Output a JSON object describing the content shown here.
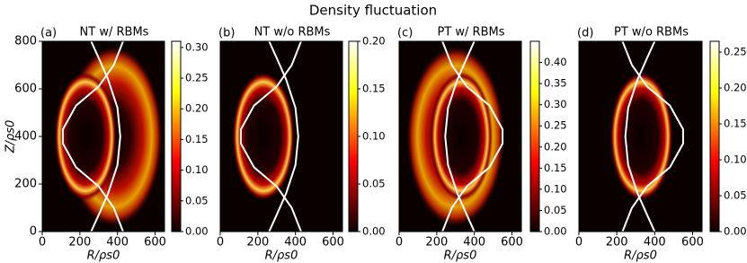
{
  "title": "Density fluctuation",
  "chart_data": [
    {
      "type": "heatmap",
      "panel_label": "(a)",
      "title": "NT w/ RBMs",
      "xlabel": "R/ρs0",
      "ylabel": "Z/ρs0",
      "colormap": "hot",
      "xlim": [
        0,
        650
      ],
      "ylim": [
        0,
        800
      ],
      "xticks": [
        0,
        200,
        400,
        600
      ],
      "yticks": [
        0,
        200,
        400,
        600,
        800
      ],
      "clim": [
        0,
        0.31
      ],
      "cticks": [
        {
          "value": 0,
          "label": "0.00"
        },
        {
          "value": 0.05,
          "label": "0.05"
        },
        {
          "value": 0.1,
          "label": "0.10"
        },
        {
          "value": 0.15,
          "label": "0.15"
        },
        {
          "value": 0.2,
          "label": "0.20"
        },
        {
          "value": 0.25,
          "label": "0.25"
        },
        {
          "value": 0.3,
          "label": "0.30"
        }
      ]
    },
    {
      "type": "heatmap",
      "panel_label": "(b)",
      "title": "NT w/o RBMs",
      "xlabel": "R/ρs0",
      "colormap": "hot",
      "xlim": [
        0,
        650
      ],
      "ylim": [
        0,
        800
      ],
      "xticks": [
        0,
        200,
        400,
        600
      ],
      "clim": [
        0,
        0.2
      ],
      "cticks": [
        {
          "value": 0,
          "label": "0.00"
        },
        {
          "value": 0.05,
          "label": "0.05"
        },
        {
          "value": 0.1,
          "label": "0.10"
        },
        {
          "value": 0.15,
          "label": "0.15"
        },
        {
          "value": 0.2,
          "label": "0.20"
        }
      ]
    },
    {
      "type": "heatmap",
      "panel_label": "(c)",
      "title": "PT w/ RBMs",
      "xlabel": "R/ρs0",
      "colormap": "hot",
      "xlim": [
        0,
        650
      ],
      "ylim": [
        0,
        800
      ],
      "xticks": [
        0,
        200,
        400,
        600
      ],
      "clim": [
        0,
        0.45
      ],
      "cticks": [
        {
          "value": 0,
          "label": "0.00"
        },
        {
          "value": 0.05,
          "label": "0.05"
        },
        {
          "value": 0.1,
          "label": "0.10"
        },
        {
          "value": 0.15,
          "label": "0.15"
        },
        {
          "value": 0.2,
          "label": "0.20"
        },
        {
          "value": 0.25,
          "label": "0.25"
        },
        {
          "value": 0.3,
          "label": "0.30"
        },
        {
          "value": 0.35,
          "label": "0.35"
        },
        {
          "value": 0.4,
          "label": "0.40"
        }
      ]
    },
    {
      "type": "heatmap",
      "panel_label": "(d)",
      "title": "PT w/o RBMs",
      "xlabel": "R/ρs0",
      "colormap": "hot",
      "xlim": [
        0,
        650
      ],
      "ylim": [
        0,
        800
      ],
      "xticks": [
        0,
        200,
        400,
        600
      ],
      "clim": [
        0,
        0.265
      ],
      "cticks": [
        {
          "value": 0,
          "label": "0.00"
        },
        {
          "value": 0.05,
          "label": "0.05"
        },
        {
          "value": 0.1,
          "label": "0.10"
        },
        {
          "value": 0.15,
          "label": "0.15"
        },
        {
          "value": 0.2,
          "label": "0.20"
        },
        {
          "value": 0.25,
          "label": "0.25"
        }
      ]
    }
  ]
}
